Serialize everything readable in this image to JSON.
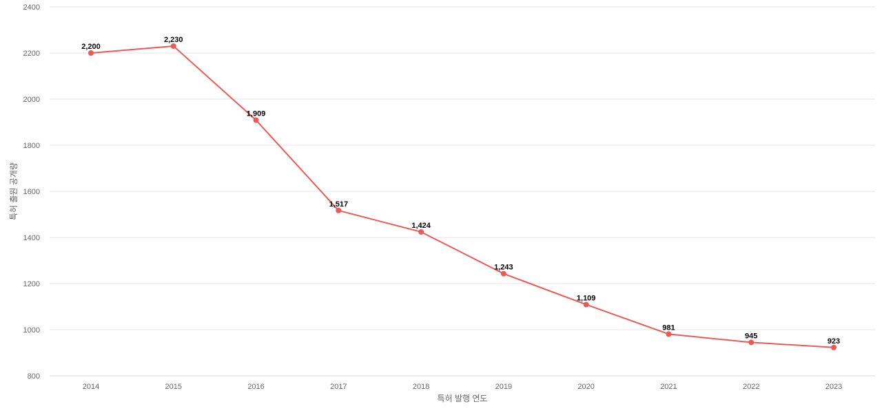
{
  "chart_data": {
    "type": "line",
    "title": "",
    "xlabel": "특허 발행 연도",
    "ylabel": "특허 출원 공개량",
    "ylim": [
      800,
      2400
    ],
    "yticks": [
      "800",
      "1000",
      "1200",
      "1400",
      "1600",
      "1800",
      "2000",
      "2200",
      "2400"
    ],
    "grid": true,
    "legend": "none",
    "categories": [
      "2014",
      "2015",
      "2016",
      "2017",
      "2018",
      "2019",
      "2020",
      "2021",
      "2022",
      "2023"
    ],
    "series": [
      {
        "values": [
          2200,
          2230,
          1909,
          1517,
          1424,
          1243,
          1109,
          981,
          945,
          923
        ],
        "labels": [
          "2,200",
          "2,230",
          "1,909",
          "1,517",
          "1,424",
          "1,243",
          "1,109",
          "981",
          "945",
          "923"
        ],
        "color": "#eb5a55"
      }
    ]
  }
}
